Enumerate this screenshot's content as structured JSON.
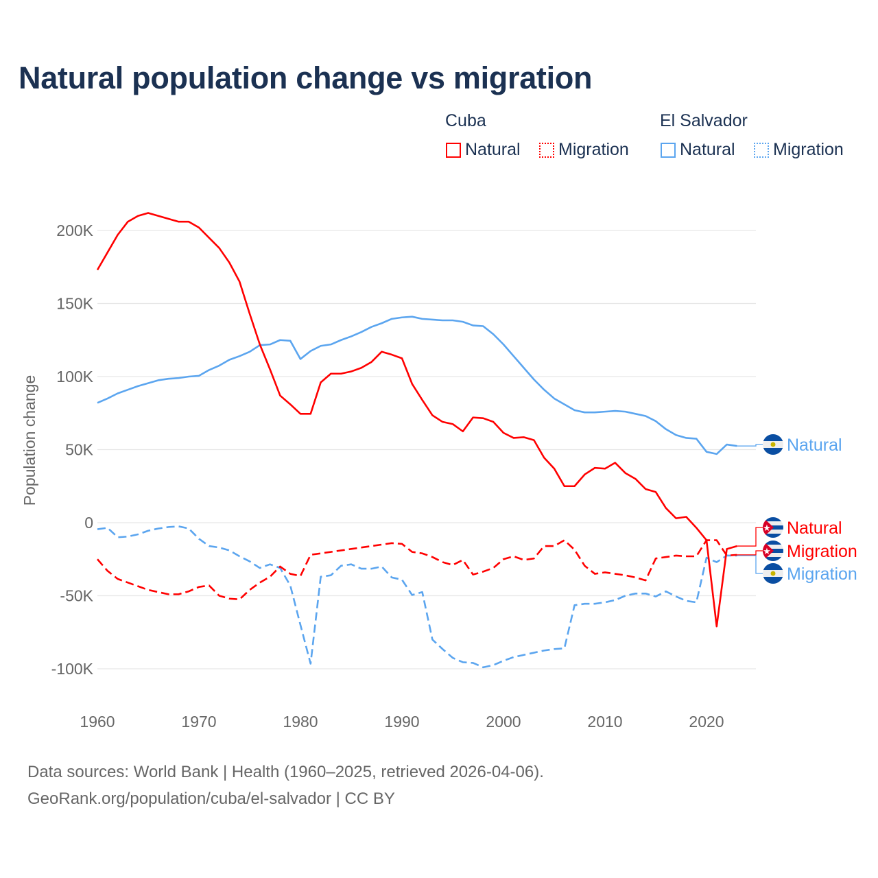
{
  "title": "Natural population change vs migration",
  "legend": {
    "groups": [
      {
        "country": "Cuba",
        "items": [
          "Natural",
          "Migration"
        ],
        "color": "#ff0000"
      },
      {
        "country": "El Salvador",
        "items": [
          "Natural",
          "Migration"
        ],
        "color": "#5ba5ef"
      }
    ]
  },
  "footer": {
    "line1": "Data sources: World Bank | Health (1960–2025, retrieved 2026-04-06).",
    "line2": "GeoRank.org/population/cuba/el-salvador | CC BY"
  },
  "chart_data": {
    "type": "line",
    "title": "Natural population change vs migration",
    "xlabel": "",
    "ylabel": "Population change",
    "xlim": [
      1960,
      2025
    ],
    "ylim": [
      -120000,
      215000
    ],
    "x_ticks": [
      1960,
      1970,
      1980,
      1990,
      2000,
      2010,
      2020
    ],
    "x_tick_labels": [
      "1960",
      "1970",
      "1980",
      "1990",
      "2000",
      "2010",
      "2020"
    ],
    "y_ticks": [
      -100000,
      -50000,
      0,
      50000,
      100000,
      150000,
      200000
    ],
    "y_tick_labels": [
      "-100K",
      "-50K",
      "0",
      "50K",
      "100K",
      "150K",
      "200K"
    ],
    "grid": true,
    "legend_position": "top-right",
    "x_start": 1960,
    "series": [
      {
        "name": "Cuba Natural",
        "country": "Cuba",
        "kind": "Natural",
        "end_label": "Natural",
        "flag": "cuba",
        "color": "#ff0000",
        "dash": false,
        "values_k": [
          173,
          185,
          197,
          206,
          210,
          212,
          210,
          208,
          206,
          206,
          202,
          195,
          188,
          178,
          165,
          143,
          122,
          105,
          87,
          81,
          74.5,
          74.5,
          96,
          102,
          102,
          103.5,
          106,
          110,
          117,
          115,
          112.5,
          95,
          84,
          73.5,
          69,
          67.5,
          62.5,
          72,
          71.5,
          69,
          61.5,
          58,
          58.5,
          56.5,
          44.5,
          37,
          25,
          25,
          33,
          37.5,
          37,
          41,
          34,
          30,
          23,
          21,
          10,
          3,
          4,
          -3.5,
          -12,
          -71,
          -18,
          -16
        ]
      },
      {
        "name": "Cuba Migration",
        "country": "Cuba",
        "kind": "Migration",
        "end_label": "Migration",
        "flag": "cuba",
        "color": "#ff0000",
        "dash": true,
        "values_k": [
          -25,
          -33,
          -38.5,
          -41,
          -43.5,
          -46,
          -47.5,
          -49,
          -49,
          -47,
          -44,
          -43,
          -50,
          -52,
          -52.5,
          -46,
          -41,
          -37,
          -30,
          -35,
          -36.5,
          -22,
          -21,
          -20,
          -19,
          -18,
          -17,
          -16,
          -15,
          -14,
          -14.5,
          -20,
          -21,
          -23.5,
          -27,
          -29,
          -25.5,
          -35.5,
          -33.5,
          -31,
          -25,
          -23,
          -25.5,
          -24.5,
          -16,
          -16,
          -12,
          -18.5,
          -29.5,
          -35,
          -34,
          -35,
          -36,
          -37.5,
          -39.5,
          -24.5,
          -23.5,
          -22.5,
          -23,
          -23,
          -12,
          -12,
          -22.5,
          -22
        ]
      },
      {
        "name": "El Salvador Natural",
        "country": "El Salvador",
        "kind": "Natural",
        "end_label": "Natural",
        "flag": "el-salvador",
        "color": "#5ba5ef",
        "dash": false,
        "values_k": [
          82,
          85,
          88.5,
          91,
          93.5,
          95.5,
          97.5,
          98.5,
          99,
          100,
          100.5,
          104.5,
          107.5,
          111.5,
          114,
          117,
          121.5,
          122,
          125,
          124.5,
          112,
          117.5,
          121,
          122,
          125,
          127.5,
          130.5,
          134,
          136.5,
          139.5,
          140.5,
          141,
          139.5,
          139,
          138.5,
          138.5,
          137.5,
          135,
          134.5,
          129,
          122,
          114,
          106,
          98,
          91,
          85,
          81,
          77,
          75.5,
          75.5,
          76,
          76.5,
          76,
          74.5,
          73,
          69.5,
          64,
          60,
          58,
          57.5,
          48.5,
          47,
          53.5,
          52.5
        ]
      },
      {
        "name": "El Salvador Migration",
        "country": "El Salvador",
        "kind": "Migration",
        "end_label": "Migration",
        "flag": "el-salvador",
        "color": "#5ba5ef",
        "dash": true,
        "values_k": [
          -4.5,
          -3.5,
          -10,
          -9.5,
          -8,
          -5.5,
          -4,
          -3,
          -2.5,
          -4,
          -11,
          -16,
          -17,
          -19,
          -23,
          -26.5,
          -31,
          -28.5,
          -31,
          -43,
          -70,
          -96.5,
          -37,
          -36,
          -29.5,
          -28.5,
          -31.5,
          -31.5,
          -30,
          -37.5,
          -39,
          -49.5,
          -47.5,
          -80,
          -86.5,
          -92.5,
          -95.5,
          -96,
          -99,
          -97.5,
          -94.5,
          -92,
          -90.5,
          -89,
          -87.5,
          -86.5,
          -86,
          -56.5,
          -55.5,
          -55.5,
          -54.5,
          -53,
          -50,
          -48.5,
          -48.5,
          -50.5,
          -47,
          -50.5,
          -53.5,
          -54.5,
          -24,
          -27,
          -22.5,
          -22.5
        ]
      }
    ]
  }
}
